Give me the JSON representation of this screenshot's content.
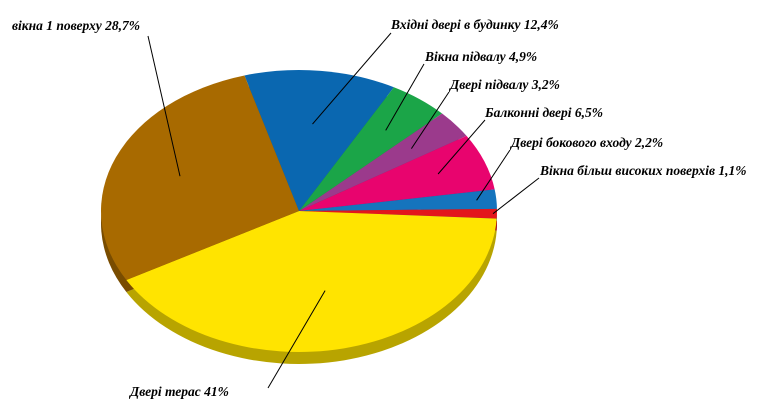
{
  "chart_data": {
    "type": "pie",
    "title": "",
    "unit": "%",
    "slices": [
      {
        "name": "Вхідні двері в будинку",
        "value": 12.4,
        "label": "Вхідні двері в будинку 12,4%",
        "color": "#0A67B0"
      },
      {
        "name": "Вікна підвалу",
        "value": 4.9,
        "label": "Вікна підвалу 4,9%",
        "color": "#1BA548"
      },
      {
        "name": "Двері підвалу",
        "value": 3.2,
        "label": "Двері підвалу 3,2%",
        "color": "#9B3A8C"
      },
      {
        "name": "Балконні двері",
        "value": 6.5,
        "label": "Балконні двері 6,5%",
        "color": "#E8046E"
      },
      {
        "name": "Двері бокового входу",
        "value": 2.2,
        "label": "Двері бокового входу 2,2%",
        "color": "#1574BD"
      },
      {
        "name": "Вікна більш високих поверхів",
        "value": 1.1,
        "label": "Вікна більш високих поверхів 1,1%",
        "color": "#E3161C"
      },
      {
        "name": "Двері терас",
        "value": 41,
        "label": "Двері терас 41%",
        "color": "#FFE400"
      },
      {
        "name": "вікна 1 поверху",
        "value": 28.7,
        "label": "вікна 1 поверху 28,7%",
        "color": "#A86A00"
      }
    ],
    "legend": "none"
  }
}
